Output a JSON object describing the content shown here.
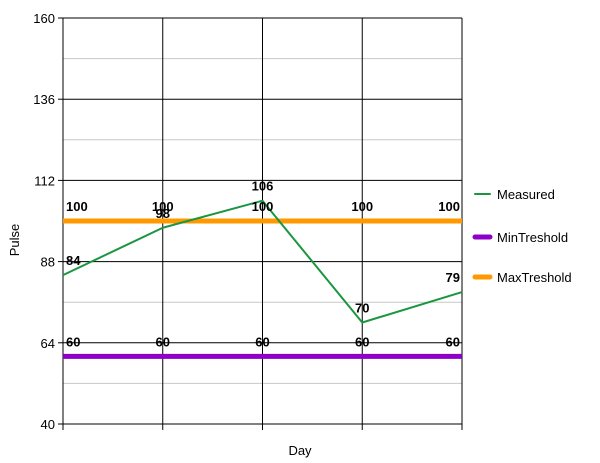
{
  "chart_data": {
    "type": "line",
    "xlabel": "Day",
    "ylabel": "Pulse",
    "ylim": [
      40,
      160
    ],
    "y_ticks": [
      40,
      64,
      88,
      112,
      136,
      160
    ],
    "x_count": 5,
    "grid": true,
    "legend_position": "right",
    "series": [
      {
        "name": "Measured",
        "values": [
          84,
          98,
          106,
          70,
          79
        ],
        "color": "#1a9641",
        "labels": [
          "84",
          "98",
          "106",
          "70",
          "79"
        ]
      },
      {
        "name": "MinTreshold",
        "values": [
          60,
          60,
          60,
          60,
          60
        ],
        "color": "#8e00c8",
        "labels": [
          "60",
          "60",
          "60",
          "60",
          "60"
        ]
      },
      {
        "name": "MaxTreshold",
        "values": [
          100,
          100,
          100,
          100,
          100
        ],
        "color": "#ff9900",
        "labels": [
          "100",
          "100",
          "100",
          "100",
          "100"
        ]
      }
    ]
  }
}
